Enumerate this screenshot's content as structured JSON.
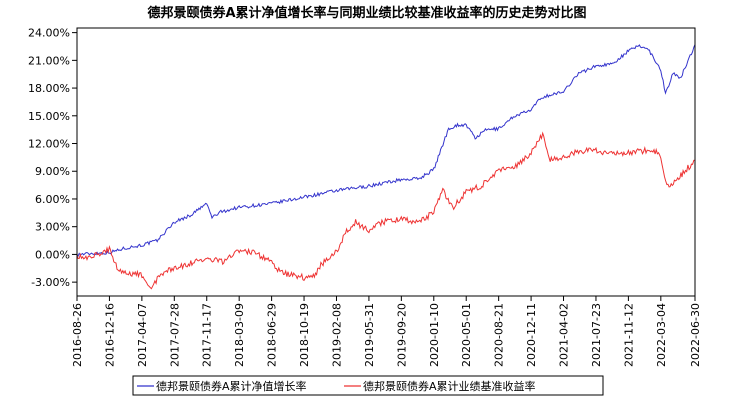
{
  "chart_data": {
    "type": "line",
    "title": "德邦景颐债券A累计净值增长率与同期业绩比较基准收益率的历史走势对比图",
    "xlabel": "",
    "ylabel": "",
    "ylim": [
      -4.5,
      24.5
    ],
    "yticks": [
      -3,
      0,
      3,
      6,
      9,
      12,
      15,
      18,
      21,
      24
    ],
    "ytick_labels": [
      "-3.00%",
      "0.00%",
      "3.00%",
      "6.00%",
      "9.00%",
      "12.00%",
      "15.00%",
      "18.00%",
      "21.00%",
      "24.00%"
    ],
    "x_range": [
      "2016-08-26",
      "2022-06-30"
    ],
    "x_tick_labels": [
      "2016-08-26",
      "2016-12-16",
      "2017-04-07",
      "2017-07-28",
      "2017-11-17",
      "2018-03-09",
      "2018-06-29",
      "2018-10-19",
      "2019-02-08",
      "2019-05-31",
      "2019-09-20",
      "2020-01-10",
      "2020-05-01",
      "2020-08-21",
      "2020-12-11",
      "2021-04-02",
      "2021-07-23",
      "2021-11-12",
      "2022-03-04",
      "2022-06-30"
    ],
    "legend_position": "bottom",
    "grid": false,
    "series": [
      {
        "name": "德邦景颐债券A累计净值增长率",
        "color": "#3333cc",
        "points": [
          [
            "2016-08-26",
            0.0
          ],
          [
            "2016-10-15",
            0.1
          ],
          [
            "2016-12-16",
            0.2
          ],
          [
            "2017-02-10",
            0.7
          ],
          [
            "2017-04-07",
            1.0
          ],
          [
            "2017-05-30",
            1.5
          ],
          [
            "2017-07-28",
            3.5
          ],
          [
            "2017-09-20",
            4.2
          ],
          [
            "2017-11-17",
            5.5
          ],
          [
            "2017-12-05",
            4.0
          ],
          [
            "2018-01-05",
            4.6
          ],
          [
            "2018-03-09",
            5.1
          ],
          [
            "2018-06-29",
            5.5
          ],
          [
            "2018-10-19",
            6.2
          ],
          [
            "2019-02-08",
            6.9
          ],
          [
            "2019-05-31",
            7.4
          ],
          [
            "2019-09-20",
            8.1
          ],
          [
            "2019-11-20",
            8.2
          ],
          [
            "2020-01-10",
            9.2
          ],
          [
            "2020-03-01",
            13.6
          ],
          [
            "2020-04-01",
            14.0
          ],
          [
            "2020-05-01",
            14.0
          ],
          [
            "2020-06-01",
            12.6
          ],
          [
            "2020-07-10",
            13.5
          ],
          [
            "2020-08-21",
            13.6
          ],
          [
            "2020-10-15",
            15.0
          ],
          [
            "2020-12-11",
            15.6
          ],
          [
            "2021-01-15",
            17.0
          ],
          [
            "2021-04-02",
            17.6
          ],
          [
            "2021-05-20",
            19.5
          ],
          [
            "2021-07-23",
            20.4
          ],
          [
            "2021-09-15",
            20.6
          ],
          [
            "2021-11-12",
            22.0
          ],
          [
            "2021-12-20",
            22.6
          ],
          [
            "2022-01-20",
            22.2
          ],
          [
            "2022-03-04",
            20.0
          ],
          [
            "2022-03-20",
            17.4
          ],
          [
            "2022-04-15",
            19.6
          ],
          [
            "2022-05-10",
            19.0
          ],
          [
            "2022-06-01",
            20.6
          ],
          [
            "2022-06-30",
            22.7
          ]
        ]
      },
      {
        "name": "德邦景颐债券A累计业绩基准收益率",
        "color": "#ee3333",
        "points": [
          [
            "2016-08-26",
            -0.1
          ],
          [
            "2016-10-15",
            -0.3
          ],
          [
            "2016-11-25",
            0.2
          ],
          [
            "2016-12-16",
            0.6
          ],
          [
            "2017-01-15",
            -1.6
          ],
          [
            "2017-02-20",
            -2.0
          ],
          [
            "2017-04-07",
            -2.2
          ],
          [
            "2017-05-10",
            -3.5
          ],
          [
            "2017-06-15",
            -2.0
          ],
          [
            "2017-07-28",
            -1.5
          ],
          [
            "2017-09-15",
            -1.0
          ],
          [
            "2017-11-17",
            -0.5
          ],
          [
            "2018-01-15",
            -0.8
          ],
          [
            "2018-03-09",
            0.5
          ],
          [
            "2018-05-01",
            0.2
          ],
          [
            "2018-06-29",
            -0.8
          ],
          [
            "2018-08-01",
            -2.0
          ],
          [
            "2018-10-19",
            -2.5
          ],
          [
            "2018-11-20",
            -2.4
          ],
          [
            "2018-12-20",
            -1.0
          ],
          [
            "2019-02-08",
            0.3
          ],
          [
            "2019-03-15",
            2.5
          ],
          [
            "2019-04-15",
            3.5
          ],
          [
            "2019-05-31",
            2.5
          ],
          [
            "2019-07-15",
            3.5
          ],
          [
            "2019-09-20",
            3.8
          ],
          [
            "2019-11-15",
            3.5
          ],
          [
            "2020-01-10",
            4.5
          ],
          [
            "2020-02-10",
            7.0
          ],
          [
            "2020-03-15",
            5.0
          ],
          [
            "2020-05-01",
            6.8
          ],
          [
            "2020-06-20",
            7.4
          ],
          [
            "2020-08-21",
            9.0
          ],
          [
            "2020-10-15",
            9.5
          ],
          [
            "2020-12-11",
            11.0
          ],
          [
            "2021-01-20",
            13.0
          ],
          [
            "2021-02-15",
            10.2
          ],
          [
            "2021-04-02",
            10.5
          ],
          [
            "2021-05-20",
            11.2
          ],
          [
            "2021-07-23",
            11.2
          ],
          [
            "2021-09-15",
            11.0
          ],
          [
            "2021-11-12",
            11.0
          ],
          [
            "2022-01-20",
            11.3
          ],
          [
            "2022-02-20",
            11.0
          ],
          [
            "2022-03-04",
            10.3
          ],
          [
            "2022-03-25",
            7.3
          ],
          [
            "2022-04-20",
            7.8
          ],
          [
            "2022-05-20",
            8.8
          ],
          [
            "2022-06-30",
            10.2
          ]
        ]
      }
    ]
  }
}
